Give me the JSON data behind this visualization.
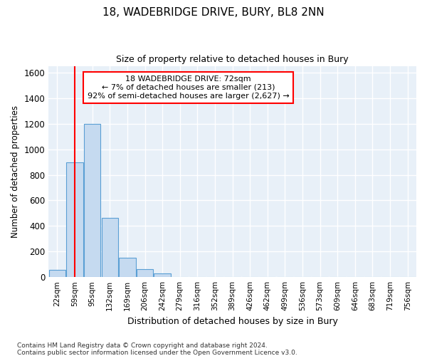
{
  "title": "18, WADEBRIDGE DRIVE, BURY, BL8 2NN",
  "subtitle": "Size of property relative to detached houses in Bury",
  "xlabel": "Distribution of detached houses by size in Bury",
  "ylabel": "Number of detached properties",
  "bar_color": "#c5daf0",
  "bar_edge_color": "#5a9fd4",
  "categories": [
    "22sqm",
    "59sqm",
    "95sqm",
    "132sqm",
    "169sqm",
    "206sqm",
    "242sqm",
    "279sqm",
    "316sqm",
    "352sqm",
    "389sqm",
    "426sqm",
    "462sqm",
    "499sqm",
    "536sqm",
    "573sqm",
    "609sqm",
    "646sqm",
    "683sqm",
    "719sqm",
    "756sqm"
  ],
  "values": [
    55,
    900,
    1200,
    465,
    150,
    60,
    30,
    0,
    0,
    0,
    0,
    0,
    0,
    0,
    0,
    0,
    0,
    0,
    0,
    0,
    0
  ],
  "ylim": [
    0,
    1650
  ],
  "yticks": [
    0,
    200,
    400,
    600,
    800,
    1000,
    1200,
    1400,
    1600
  ],
  "red_line_x": 1.0,
  "annotation_text": "18 WADEBRIDGE DRIVE: 72sqm\n← 7% of detached houses are smaller (213)\n92% of semi-detached houses are larger (2,627) →",
  "footer_line1": "Contains HM Land Registry data © Crown copyright and database right 2024.",
  "footer_line2": "Contains public sector information licensed under the Open Government Licence v3.0.",
  "background_color": "#e8f0f8",
  "grid_color": "#ffffff"
}
